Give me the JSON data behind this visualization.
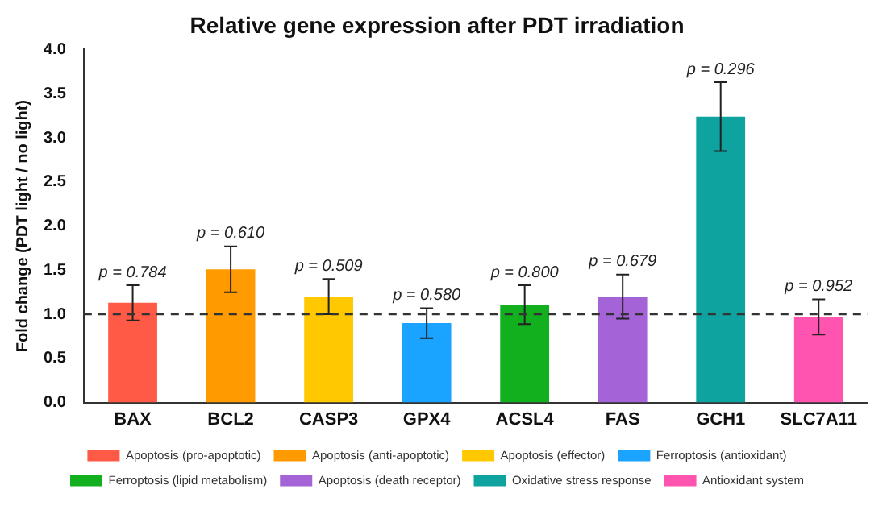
{
  "chart_data": {
    "type": "bar",
    "title": "Relative gene expression after PDT irradiation",
    "ylabel": "Fold change (PDT light / no light)",
    "categories": [
      "BAX",
      "BCL2",
      "CASP3",
      "GPX4",
      "ACSL4",
      "FAS",
      "GCH1",
      "SLC7A11"
    ],
    "series": [
      {
        "name": "Apoptosis (pro-apoptotic)",
        "color": "#ff5a45",
        "values": [
          1.13,
          null,
          null,
          null,
          null,
          null,
          null,
          null
        ],
        "errors": [
          0.2,
          null,
          null,
          null,
          null,
          null,
          null,
          null
        ]
      },
      {
        "name": "Apoptosis (anti-apoptotic)",
        "color": "#ff9a00",
        "values": [
          null,
          1.51,
          null,
          null,
          null,
          null,
          null,
          null
        ],
        "errors": [
          null,
          0.26,
          null,
          null,
          null,
          null,
          null,
          null
        ]
      },
      {
        "name": "Apoptosis (effector)",
        "color": "#ffc800",
        "values": [
          null,
          null,
          1.2,
          null,
          null,
          null,
          null,
          null
        ],
        "errors": [
          null,
          null,
          0.2,
          null,
          null,
          null,
          null,
          null
        ]
      },
      {
        "name": "Ferroptosis (antioxidant)",
        "color": "#1aa3ff",
        "values": [
          null,
          null,
          null,
          0.9,
          null,
          null,
          null,
          null
        ],
        "errors": [
          null,
          null,
          null,
          0.17,
          null,
          null,
          null,
          null
        ]
      },
      {
        "name": "Ferroptosis (lipid metabolism)",
        "color": "#12b01e",
        "values": [
          null,
          null,
          null,
          null,
          1.11,
          null,
          null,
          null
        ],
        "errors": [
          null,
          null,
          null,
          null,
          0.22,
          null,
          null,
          null
        ]
      },
      {
        "name": "Apoptosis (death receptor)",
        "color": "#a463d6",
        "values": [
          null,
          null,
          null,
          null,
          null,
          1.2,
          null,
          null
        ],
        "errors": [
          null,
          null,
          null,
          null,
          null,
          0.25,
          null,
          null
        ]
      },
      {
        "name": "Oxidative stress response",
        "color": "#0fa3a0",
        "values": [
          null,
          null,
          null,
          null,
          null,
          null,
          3.24,
          null
        ],
        "errors": [
          null,
          null,
          null,
          null,
          null,
          null,
          0.39,
          null
        ]
      },
      {
        "name": "Antioxidant system",
        "color": "#ff55b0",
        "values": [
          null,
          null,
          null,
          null,
          null,
          null,
          null,
          0.97
        ],
        "errors": [
          null,
          null,
          null,
          null,
          null,
          null,
          null,
          0.2
        ]
      }
    ],
    "ylim": [
      0,
      4
    ],
    "yticks": [
      {
        "value": 0,
        "label": "0.0"
      },
      {
        "value": 0.5,
        "label": "0.5"
      },
      {
        "value": 1,
        "label": "1.0"
      },
      {
        "value": 1.5,
        "label": "1.5"
      },
      {
        "value": 2,
        "label": "2.0"
      },
      {
        "value": 2.5,
        "label": "2.5"
      },
      {
        "value": 3,
        "label": "3.0"
      },
      {
        "value": 3.5,
        "label": "3.5"
      },
      {
        "value": 4,
        "label": "4.0"
      }
    ],
    "ref_lines": [
      {
        "axis": "y",
        "value": 1,
        "line_style": "dashed",
        "color": "#333333"
      }
    ],
    "annotations": [
      {
        "text": "p = 0.784",
        "x": "BAX",
        "y": 1.33
      },
      {
        "text": "p = 0.610",
        "x": "BCL2",
        "y": 1.77
      },
      {
        "text": "p = 0.509",
        "x": "CASP3",
        "y": 1.4
      },
      {
        "text": "p = 0.580",
        "x": "GPX4",
        "y": 1.07
      },
      {
        "text": "p = 0.800",
        "x": "ACSL4",
        "y": 1.33
      },
      {
        "text": "p = 0.679",
        "x": "FAS",
        "y": 1.45
      },
      {
        "text": "p = 0.296",
        "x": "GCH1",
        "y": 3.63
      },
      {
        "text": "p = 0.952",
        "x": "SLC7A11",
        "y": 1.17
      }
    ],
    "grid": false,
    "legend": "bottom"
  }
}
